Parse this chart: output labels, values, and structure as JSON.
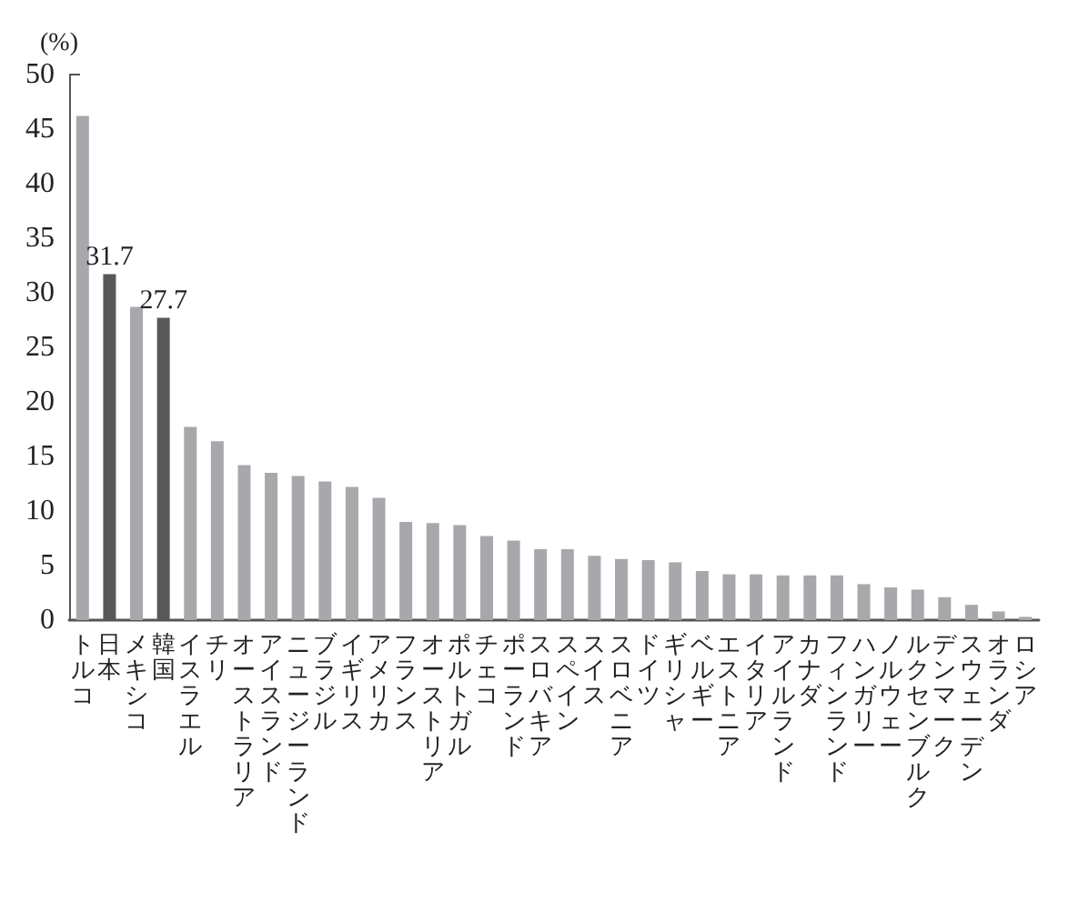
{
  "chart_data": {
    "type": "bar",
    "ylabel": "(%)",
    "categories": [
      "トルコ",
      "日本",
      "メキシコ",
      "韓国",
      "イスラエル",
      "チリ",
      "オーストラリア",
      "アイスランド",
      "ニュージーランド",
      "ブラジル",
      "イギリス",
      "アメリカ",
      "フランス",
      "オーストリア",
      "ポルトガル",
      "チェコ",
      "ポーランド",
      "スロバキア",
      "スペイン",
      "スイス",
      "スロベニア",
      "ドイツ",
      "ギリシャ",
      "ベルギー",
      "エストニア",
      "イタリア",
      "アイルランド",
      "カナダ",
      "フィンランド",
      "ハンガリー",
      "ノルウェー",
      "ルクセンブルク",
      "デンマーク",
      "スウェーデン",
      "オランダ",
      "ロシア"
    ],
    "values": [
      46.2,
      31.7,
      28.7,
      27.7,
      17.7,
      16.4,
      14.2,
      13.5,
      13.2,
      12.7,
      12.2,
      11.2,
      9.0,
      8.9,
      8.7,
      7.7,
      7.3,
      6.5,
      6.5,
      5.9,
      5.6,
      5.5,
      5.3,
      4.5,
      4.2,
      4.2,
      4.1,
      4.1,
      4.1,
      3.3,
      3.0,
      2.8,
      2.1,
      1.4,
      0.8,
      0.3
    ],
    "colors": [
      "#a7a8ab",
      "#58585a",
      "#a7a8ab",
      "#58585a",
      "#a7a8ab",
      "#a7a8ab",
      "#a7a8ab",
      "#a7a8ab",
      "#a7a8ab",
      "#a7a8ab",
      "#a7a8ab",
      "#a7a8ab",
      "#a7a8ab",
      "#a7a8ab",
      "#a7a8ab",
      "#a7a8ab",
      "#a7a8ab",
      "#a7a8ab",
      "#a7a8ab",
      "#a7a8ab",
      "#a7a8ab",
      "#a7a8ab",
      "#a7a8ab",
      "#a7a8ab",
      "#a7a8ab",
      "#a7a8ab",
      "#a7a8ab",
      "#a7a8ab",
      "#a7a8ab",
      "#a7a8ab",
      "#a7a8ab",
      "#a7a8ab",
      "#a7a8ab",
      "#a7a8ab",
      "#a7a8ab",
      "#a7a8ab"
    ],
    "value_labels": [
      null,
      "31.7",
      null,
      "27.7",
      null,
      null,
      null,
      null,
      null,
      null,
      null,
      null,
      null,
      null,
      null,
      null,
      null,
      null,
      null,
      null,
      null,
      null,
      null,
      null,
      null,
      null,
      null,
      null,
      null,
      null,
      null,
      null,
      null,
      null,
      null,
      null
    ],
    "ylim": [
      0,
      50
    ],
    "yticks": [
      0,
      5,
      10,
      15,
      20,
      25,
      30,
      35,
      40,
      45,
      50
    ],
    "grid": false
  }
}
